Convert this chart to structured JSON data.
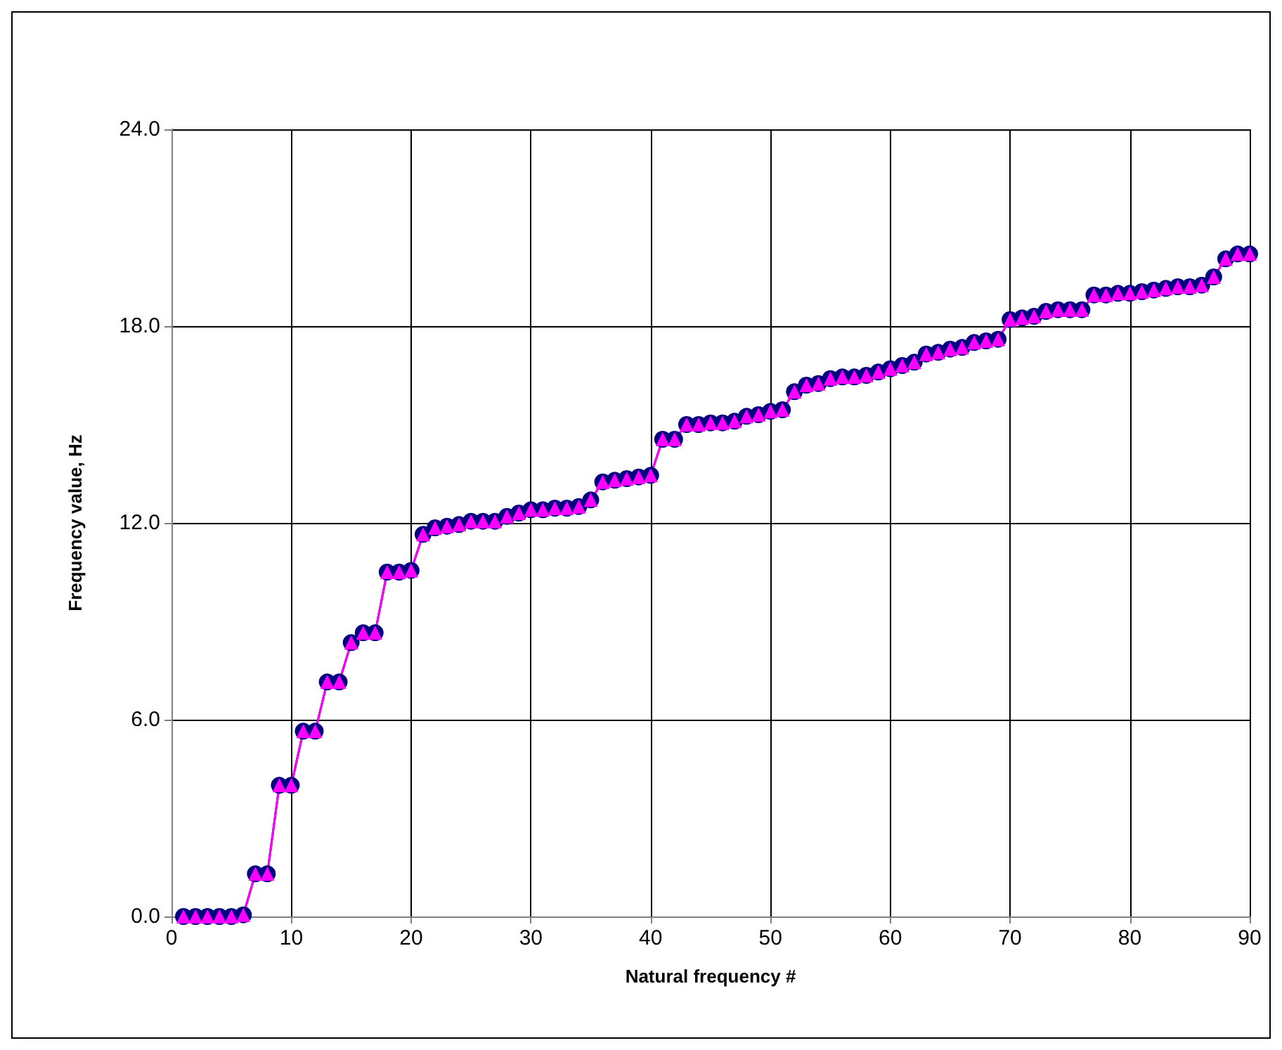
{
  "chart_data": {
    "type": "line",
    "xlabel": "Natural frequency #",
    "ylabel": "Frequency value, Hz",
    "x": [
      1,
      2,
      3,
      4,
      5,
      6,
      7,
      8,
      9,
      10,
      11,
      12,
      13,
      14,
      15,
      16,
      17,
      18,
      19,
      20,
      21,
      22,
      23,
      24,
      25,
      26,
      27,
      28,
      29,
      30,
      31,
      32,
      33,
      34,
      35,
      36,
      37,
      38,
      39,
      40,
      41,
      42,
      43,
      44,
      45,
      46,
      47,
      48,
      49,
      50,
      51,
      52,
      53,
      54,
      55,
      56,
      57,
      58,
      59,
      60,
      61,
      62,
      63,
      64,
      65,
      66,
      67,
      68,
      69,
      70,
      71,
      72,
      73,
      74,
      75,
      76,
      77,
      78,
      79,
      80,
      81,
      82,
      83,
      84,
      85,
      86,
      87,
      88,
      89,
      90
    ],
    "series": [
      {
        "color": "#000080",
        "marker": "circle",
        "values": [
          0,
          0,
          0,
          0,
          0,
          0.05,
          1.3,
          1.3,
          4.0,
          4.0,
          5.65,
          5.65,
          7.15,
          7.15,
          8.35,
          8.65,
          8.65,
          10.5,
          10.5,
          10.55,
          11.65,
          11.85,
          11.9,
          11.95,
          12.05,
          12.05,
          12.05,
          12.2,
          12.3,
          12.4,
          12.4,
          12.45,
          12.45,
          12.5,
          12.7,
          13.25,
          13.3,
          13.35,
          13.4,
          13.45,
          14.55,
          14.55,
          15.0,
          15.0,
          15.05,
          15.05,
          15.1,
          15.25,
          15.3,
          15.4,
          15.45,
          16.0,
          16.2,
          16.25,
          16.4,
          16.45,
          16.45,
          16.5,
          16.6,
          16.7,
          16.8,
          16.9,
          17.15,
          17.2,
          17.3,
          17.35,
          17.5,
          17.55,
          17.6,
          18.2,
          18.25,
          18.3,
          18.45,
          18.5,
          18.5,
          18.5,
          18.95,
          18.95,
          19.0,
          19.0,
          19.05,
          19.1,
          19.15,
          19.2,
          19.2,
          19.25,
          19.5,
          20.05,
          20.2,
          20.2
        ]
      },
      {
        "color": "#ff00ff",
        "marker": "triangle",
        "values": [
          0,
          0,
          0,
          0,
          0,
          0.05,
          1.3,
          1.3,
          4.0,
          4.0,
          5.65,
          5.65,
          7.15,
          7.15,
          8.35,
          8.65,
          8.65,
          10.5,
          10.5,
          10.55,
          11.65,
          11.85,
          11.9,
          11.95,
          12.05,
          12.05,
          12.05,
          12.2,
          12.3,
          12.4,
          12.4,
          12.45,
          12.45,
          12.5,
          12.7,
          13.25,
          13.3,
          13.35,
          13.4,
          13.45,
          14.55,
          14.55,
          15.0,
          15.0,
          15.05,
          15.05,
          15.1,
          15.25,
          15.3,
          15.4,
          15.45,
          16.0,
          16.2,
          16.25,
          16.4,
          16.45,
          16.45,
          16.5,
          16.6,
          16.7,
          16.8,
          16.9,
          17.15,
          17.2,
          17.3,
          17.35,
          17.5,
          17.55,
          17.6,
          18.2,
          18.25,
          18.3,
          18.45,
          18.5,
          18.5,
          18.5,
          18.95,
          18.95,
          19.0,
          19.0,
          19.05,
          19.1,
          19.15,
          19.2,
          19.2,
          19.25,
          19.5,
          20.05,
          20.2,
          20.2
        ]
      }
    ],
    "xlim": [
      0,
      90
    ],
    "xticks": [
      0,
      10,
      20,
      30,
      40,
      50,
      60,
      70,
      80,
      90
    ],
    "ylim": [
      0,
      24
    ],
    "yticks": [
      {
        "value": 0,
        "label": "0.0"
      },
      {
        "value": 6,
        "label": "6.0"
      },
      {
        "value": 12,
        "label": "12.0"
      },
      {
        "value": 18,
        "label": "18.0"
      },
      {
        "value": 24,
        "label": "24.0"
      }
    ],
    "grid": true,
    "line_style": "solid"
  }
}
